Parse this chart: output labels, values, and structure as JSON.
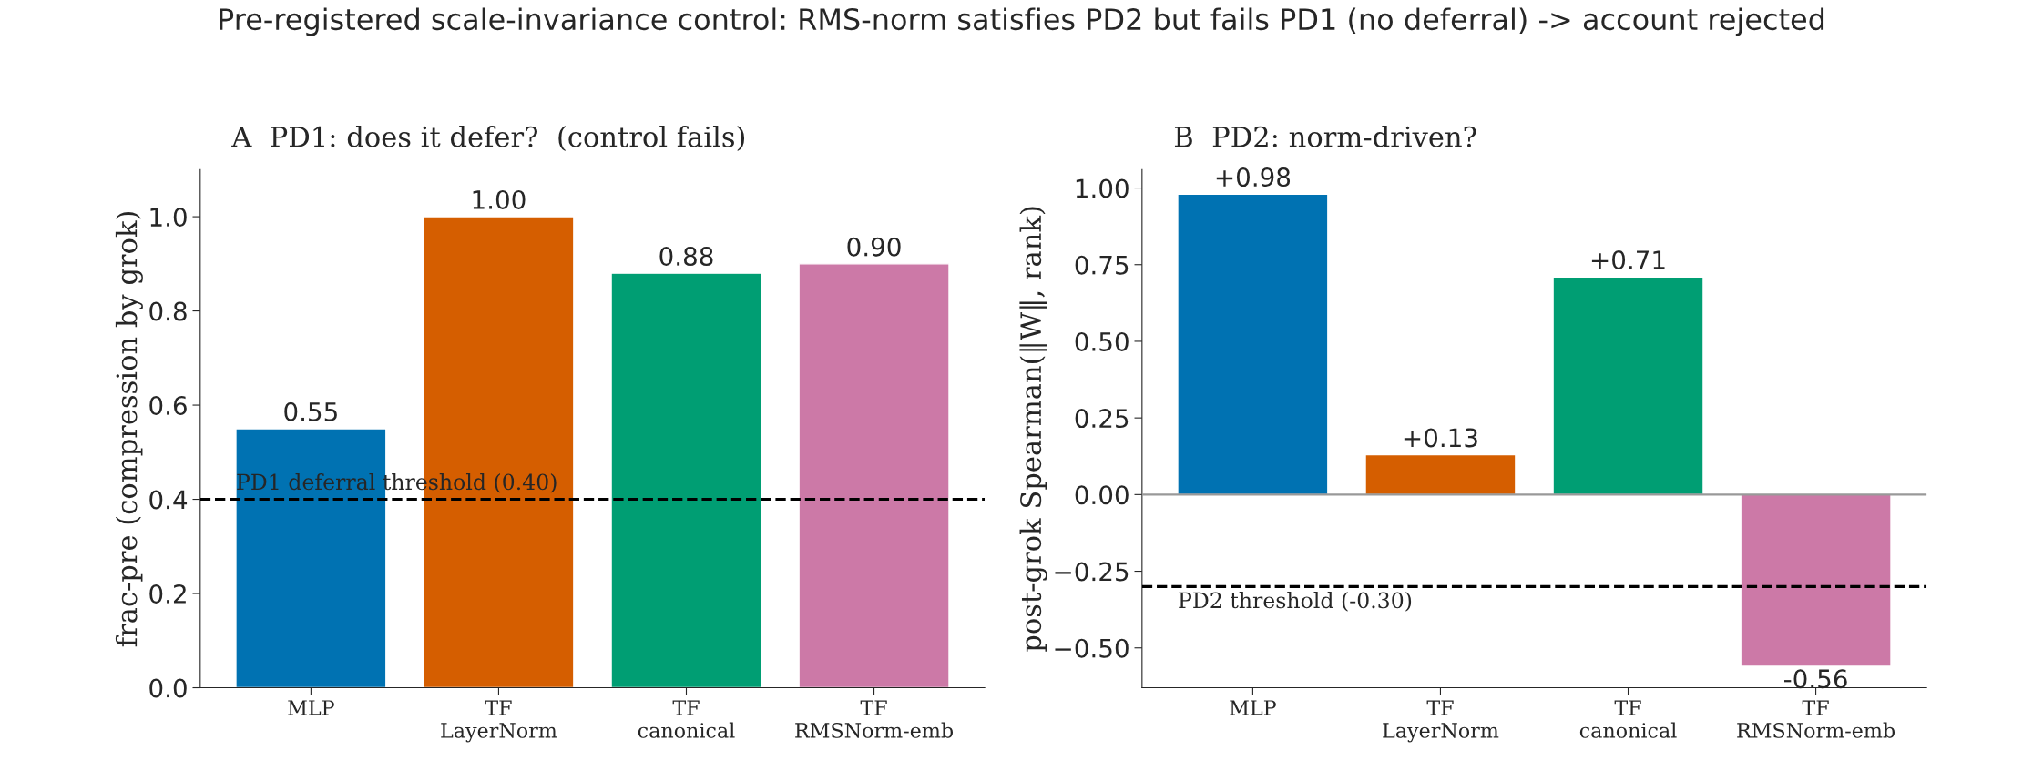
{
  "chart_data": [
    {
      "type": "bar",
      "title": "A  PD1: does it defer?  (control fails)",
      "ylabel": "frac-pre (compression by grok)",
      "annotations": [
        "Pre-registered scale-invariance control: RMS-norm satisfies PD2 but fails PD1 (no deferral) -> account rejected"
      ],
      "categories": [
        "MLP",
        "TF\nLayerNorm",
        "TF\ncanonical",
        "TF\nRMSNorm-emb"
      ],
      "values": [
        0.55,
        1.0,
        0.88,
        0.9
      ],
      "colors": [
        "#0072b2",
        "#d55e00",
        "#009e73",
        "#cc79a7"
      ],
      "value_labels": [
        "0.55",
        "1.00",
        "0.88",
        "0.90"
      ],
      "ylim": [
        0,
        1.1
      ],
      "yticks": [
        {
          "value": 0,
          "label": "0.0"
        },
        {
          "value": 0.2,
          "label": "0.2"
        },
        {
          "value": 0.4,
          "label": "0.4"
        },
        {
          "value": 0.6,
          "label": "0.6"
        },
        {
          "value": 0.8,
          "label": "0.8"
        },
        {
          "value": 1.0,
          "label": "1.0"
        }
      ],
      "ref_lines": [
        {
          "axis": "y",
          "value": 0.4,
          "label": "PD1 deferral threshold (0.40)",
          "color": "#000000",
          "line_style": "dashed"
        }
      ]
    },
    {
      "type": "bar",
      "title": "B  PD2: norm-driven?",
      "ylabel": "post-grok Spearman(‖W‖, rank)",
      "categories": [
        "MLP",
        "TF\nLayerNorm",
        "TF\ncanonical",
        "TF\nRMSNorm-emb"
      ],
      "values": [
        0.98,
        0.13,
        0.71,
        -0.56
      ],
      "colors": [
        "#0072b2",
        "#d55e00",
        "#009e73",
        "#cc79a7"
      ],
      "value_labels": [
        "+0.98",
        "+0.13",
        "+0.71",
        "-0.56"
      ],
      "ylim": [
        -0.63,
        1.06
      ],
      "yticks": [
        {
          "value": -0.5,
          "label": "−0.50"
        },
        {
          "value": -0.25,
          "label": "−0.25"
        },
        {
          "value": 0,
          "label": "0.00"
        },
        {
          "value": 0.25,
          "label": "0.25"
        },
        {
          "value": 0.5,
          "label": "0.50"
        },
        {
          "value": 0.75,
          "label": "0.75"
        },
        {
          "value": 1.0,
          "label": "1.00"
        }
      ],
      "ref_lines": [
        {
          "axis": "y",
          "value": 0,
          "color": "#999999",
          "line_style": "solid"
        },
        {
          "axis": "y",
          "value": -0.3,
          "label": "PD2 threshold (-0.30)",
          "color": "#000000",
          "line_style": "dashed"
        }
      ]
    }
  ]
}
